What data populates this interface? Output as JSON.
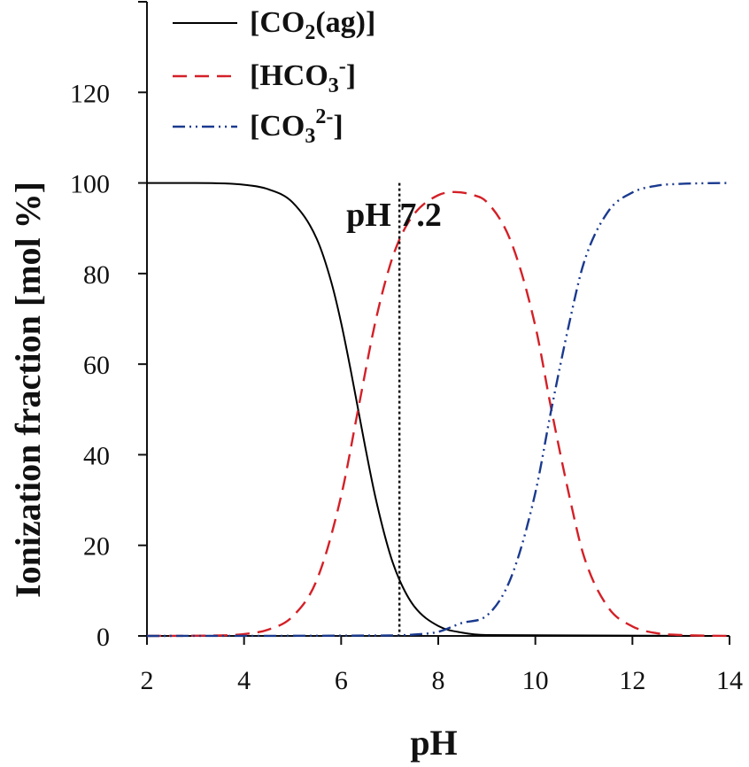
{
  "chart_data": {
    "type": "line",
    "xlabel": "pH",
    "ylabel": "Ionization fraction [mol %]",
    "xlim": [
      2,
      14
    ],
    "ylim": [
      0,
      140
    ],
    "xticks": [
      2,
      4,
      6,
      8,
      10,
      12,
      14
    ],
    "yticks": [
      0,
      20,
      40,
      60,
      80,
      100,
      120
    ],
    "pKa1": 6.35,
    "pKa2": 10.33,
    "legend_position": "top-left",
    "series": [
      {
        "name": "[CO2(ag)]",
        "name_main": "[CO",
        "name_sub": "2",
        "name_tail": "(ag)]",
        "color": "#000000",
        "style": "solid",
        "x": [
          2,
          3,
          4,
          4.5,
          5,
          5.5,
          5.8,
          6,
          6.2,
          6.35,
          6.5,
          6.7,
          7,
          7.2,
          7.5,
          8,
          8.5,
          9,
          14
        ],
        "y": [
          100,
          100,
          99.6,
          98.6,
          95.7,
          87.6,
          78.0,
          69.1,
          58.5,
          50.0,
          41.5,
          30.9,
          18.3,
          12.4,
          6.6,
          2.2,
          0.7,
          0.2,
          0
        ]
      },
      {
        "name": "[HCO3-]",
        "name_main": "[HCO",
        "name_sub": "3",
        "name_sup": "-",
        "name_tail": "]",
        "color": "#d42027",
        "style": "dashed",
        "x": [
          2,
          3.5,
          4,
          4.5,
          5,
          5.5,
          6,
          6.35,
          6.7,
          7,
          7.2,
          7.5,
          8,
          8.34,
          8.7,
          9,
          9.5,
          10,
          10.33,
          10.7,
          11,
          11.5,
          12,
          12.5,
          13,
          14
        ],
        "y": [
          0,
          0.1,
          0.4,
          1.4,
          4.3,
          12.4,
          30.9,
          50.0,
          69.1,
          81.6,
          87.5,
          93.1,
          97.3,
          98.0,
          97.4,
          95.8,
          87.0,
          68.4,
          50.0,
          30.9,
          17.6,
          6.3,
          2.1,
          0.6,
          0.2,
          0
        ]
      },
      {
        "name": "[CO32-]",
        "name_main": "[CO",
        "name_sub": "3",
        "name_sup": "2-",
        "name_tail": "]",
        "color": "#1a3a8f",
        "style": "dashdotdot",
        "x": [
          2,
          7,
          7.5,
          8,
          8.5,
          9,
          9.5,
          10,
          10.33,
          10.7,
          11,
          11.5,
          12,
          12.5,
          13,
          14
        ],
        "y": [
          0,
          0.1,
          0.3,
          0.9,
          2.9,
          4.5,
          12.9,
          31.6,
          50.0,
          69.1,
          82.4,
          93.7,
          97.9,
          99.4,
          99.8,
          100
        ]
      }
    ],
    "annotations": [
      {
        "text": "pH 7.2",
        "x": 7.2,
        "style": "dotted vertical line"
      }
    ]
  }
}
